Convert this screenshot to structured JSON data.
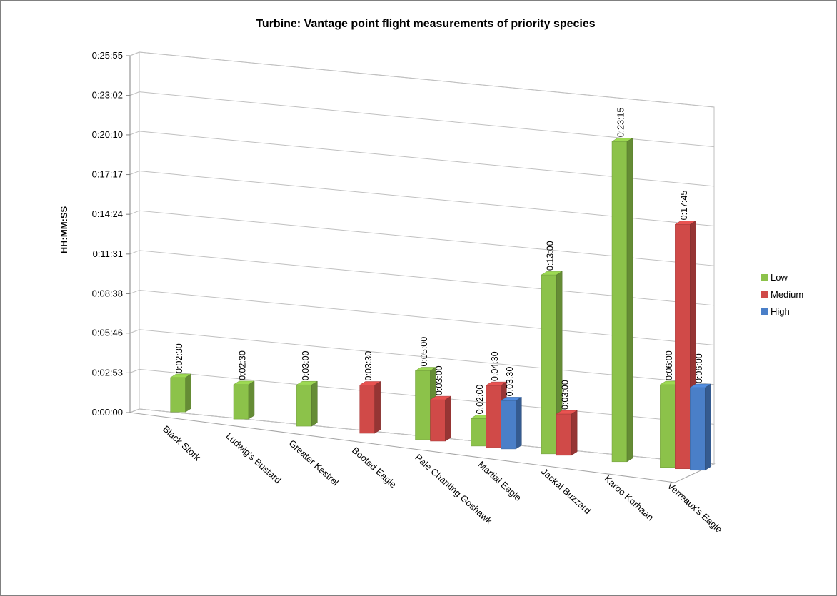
{
  "chart_data": {
    "type": "bar",
    "title": "Turbine: Vantage point flight measurements of priority species",
    "ylabel": "HH:MM:SS",
    "xlabel": "",
    "y_ticks": [
      "0:00:00",
      "0:02:53",
      "0:05:46",
      "0:08:38",
      "0:11:31",
      "0:14:24",
      "0:17:17",
      "0:20:10",
      "0:23:02",
      "0:25:55"
    ],
    "ylim_seconds": [
      0,
      1555
    ],
    "categories": [
      "Black Stork",
      "Ludwig's Bustard",
      "Greater Kestrel",
      "Booted Eagle",
      "Pale Chanting Goshawk",
      "Martial Eagle",
      "Jackal Buzzard",
      "Karoo Korhaan",
      "Verreaux's Eagle"
    ],
    "series": [
      {
        "name": "Low",
        "color": "#8cc24a",
        "values": [
          "0:02:30",
          "0:02:30",
          "0:03:00",
          null,
          "0:05:00",
          "0:02:00",
          "0:13:00",
          "0:23:15",
          "0:06:00"
        ]
      },
      {
        "name": "Medium",
        "color": "#d04a48",
        "values": [
          null,
          null,
          null,
          "0:03:30",
          "0:03:00",
          "0:04:30",
          "0:03:00",
          null,
          "0:17:45"
        ]
      },
      {
        "name": "High",
        "color": "#4a7fc8",
        "values": [
          null,
          null,
          null,
          null,
          null,
          "0:03:30",
          null,
          null,
          "0:06:00"
        ]
      }
    ],
    "legend_position": "right",
    "grid": true,
    "three_d": true
  }
}
